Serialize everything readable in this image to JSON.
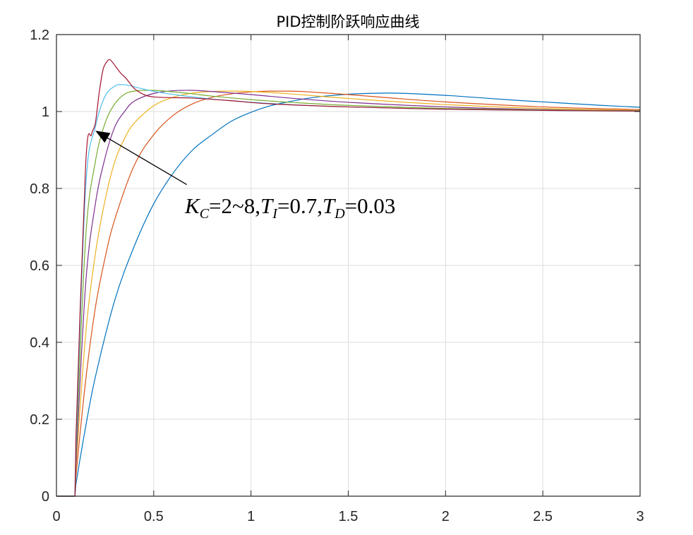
{
  "chart_data": {
    "type": "line",
    "title": "PID控制阶跃响应曲线",
    "xlabel": "",
    "ylabel": "",
    "xlim": [
      0,
      3
    ],
    "ylim": [
      0,
      1.2
    ],
    "grid": true,
    "x_ticks": [
      "0",
      "0.5",
      "1",
      "1.5",
      "2",
      "2.5",
      "3"
    ],
    "y_ticks": [
      "0",
      "0.2",
      "0.4",
      "0.6",
      "0.8",
      "1",
      "1.2"
    ],
    "annotation": {
      "K": "K",
      "C": "C",
      "kc_range": "=2~8,",
      "T1": "T",
      "I": "I",
      "ti_value": "=0.7,",
      "T2": "T",
      "D": "D",
      "td_value": "=0.03",
      "arrow_from": [
        0.67,
        0.81
      ],
      "arrow_to": [
        0.2,
        0.95
      ]
    },
    "series": [
      {
        "color": "#0072BD",
        "points": [
          [
            0,
            0
          ],
          [
            0.095,
            0
          ],
          [
            0.1,
            0.03
          ],
          [
            0.15,
            0.18
          ],
          [
            0.2,
            0.31
          ],
          [
            0.3,
            0.51
          ],
          [
            0.4,
            0.65
          ],
          [
            0.5,
            0.76
          ],
          [
            0.6,
            0.84
          ],
          [
            0.7,
            0.9
          ],
          [
            0.8,
            0.94
          ],
          [
            0.9,
            0.975
          ],
          [
            1,
            0.998
          ],
          [
            1.1,
            1.015
          ],
          [
            1.2,
            1.026
          ],
          [
            1.3,
            1.035
          ],
          [
            1.4,
            1.041
          ],
          [
            1.5,
            1.045
          ],
          [
            1.6,
            1.047
          ],
          [
            1.7,
            1.048
          ],
          [
            1.8,
            1.047
          ],
          [
            2,
            1.042
          ],
          [
            2.2,
            1.035
          ],
          [
            2.4,
            1.028
          ],
          [
            2.6,
            1.022
          ],
          [
            2.8,
            1.016
          ],
          [
            3,
            1.011
          ]
        ]
      },
      {
        "color": "#D95319",
        "points": [
          [
            0,
            0
          ],
          [
            0.095,
            0
          ],
          [
            0.1,
            0.05
          ],
          [
            0.15,
            0.3
          ],
          [
            0.2,
            0.49
          ],
          [
            0.25,
            0.62
          ],
          [
            0.3,
            0.72
          ],
          [
            0.4,
            0.86
          ],
          [
            0.5,
            0.94
          ],
          [
            0.6,
            0.99
          ],
          [
            0.7,
            1.02
          ],
          [
            0.8,
            1.037
          ],
          [
            0.9,
            1.046
          ],
          [
            1,
            1.051
          ],
          [
            1.1,
            1.053
          ],
          [
            1.2,
            1.053
          ],
          [
            1.3,
            1.051
          ],
          [
            1.5,
            1.044
          ],
          [
            1.7,
            1.036
          ],
          [
            2,
            1.025
          ],
          [
            2.5,
            1.012
          ],
          [
            3,
            1.005
          ]
        ]
      },
      {
        "color": "#EDB120",
        "points": [
          [
            0,
            0
          ],
          [
            0.095,
            0
          ],
          [
            0.1,
            0.07
          ],
          [
            0.15,
            0.42
          ],
          [
            0.2,
            0.63
          ],
          [
            0.25,
            0.77
          ],
          [
            0.3,
            0.87
          ],
          [
            0.35,
            0.93
          ],
          [
            0.4,
            0.97
          ],
          [
            0.5,
            1.015
          ],
          [
            0.6,
            1.037
          ],
          [
            0.7,
            1.048
          ],
          [
            0.8,
            1.052
          ],
          [
            0.9,
            1.053
          ],
          [
            1,
            1.052
          ],
          [
            1.2,
            1.046
          ],
          [
            1.5,
            1.034
          ],
          [
            2,
            1.018
          ],
          [
            2.5,
            1.008
          ],
          [
            3,
            1.003
          ]
        ]
      },
      {
        "color": "#7E2F8E",
        "points": [
          [
            0,
            0
          ],
          [
            0.095,
            0
          ],
          [
            0.1,
            0.08
          ],
          [
            0.15,
            0.55
          ],
          [
            0.2,
            0.76
          ],
          [
            0.25,
            0.88
          ],
          [
            0.3,
            0.96
          ],
          [
            0.35,
            1.0
          ],
          [
            0.4,
            1.027
          ],
          [
            0.5,
            1.047
          ],
          [
            0.6,
            1.054
          ],
          [
            0.7,
            1.055
          ],
          [
            0.8,
            1.052
          ],
          [
            1,
            1.044
          ],
          [
            1.2,
            1.035
          ],
          [
            1.5,
            1.024
          ],
          [
            2,
            1.012
          ],
          [
            2.5,
            1.005
          ],
          [
            3,
            1.002
          ]
        ]
      },
      {
        "color": "#77AC30",
        "points": [
          [
            0,
            0
          ],
          [
            0.095,
            0
          ],
          [
            0.1,
            0.1
          ],
          [
            0.15,
            0.67
          ],
          [
            0.2,
            0.87
          ],
          [
            0.25,
            0.97
          ],
          [
            0.3,
            1.02
          ],
          [
            0.35,
            1.045
          ],
          [
            0.4,
            1.053
          ],
          [
            0.5,
            1.055
          ],
          [
            0.6,
            1.051
          ],
          [
            0.7,
            1.046
          ],
          [
            0.8,
            1.04
          ],
          [
            1,
            1.031
          ],
          [
            1.2,
            1.024
          ],
          [
            1.5,
            1.016
          ],
          [
            2,
            1.008
          ],
          [
            2.5,
            1.004
          ],
          [
            3,
            1.002
          ]
        ]
      },
      {
        "color": "#4DBEEE",
        "points": [
          [
            0,
            0
          ],
          [
            0.095,
            0
          ],
          [
            0.1,
            0.12
          ],
          [
            0.15,
            0.8
          ],
          [
            0.2,
            0.96
          ],
          [
            0.25,
            1.04
          ],
          [
            0.3,
            1.066
          ],
          [
            0.33,
            1.07
          ],
          [
            0.37,
            1.068
          ],
          [
            0.45,
            1.058
          ],
          [
            0.55,
            1.048
          ],
          [
            0.7,
            1.038
          ],
          [
            0.9,
            1.028
          ],
          [
            1.2,
            1.018
          ],
          [
            1.5,
            1.012
          ],
          [
            2,
            1.006
          ],
          [
            2.5,
            1.003
          ],
          [
            3,
            1.001
          ]
        ]
      },
      {
        "color": "#A2142F",
        "points": [
          [
            0,
            0
          ],
          [
            0.095,
            0
          ],
          [
            0.1,
            0.15
          ],
          [
            0.15,
            0.86
          ],
          [
            0.18,
            0.94
          ],
          [
            0.2,
            0.97
          ],
          [
            0.22,
            1.05
          ],
          [
            0.24,
            1.11
          ],
          [
            0.26,
            1.13
          ],
          [
            0.27,
            1.135
          ],
          [
            0.28,
            1.133
          ],
          [
            0.3,
            1.12
          ],
          [
            0.33,
            1.1
          ],
          [
            0.36,
            1.085
          ],
          [
            0.4,
            1.06
          ],
          [
            0.45,
            1.044
          ],
          [
            0.5,
            1.038
          ],
          [
            0.6,
            1.036
          ],
          [
            0.7,
            1.035
          ],
          [
            0.9,
            1.028
          ],
          [
            1.1,
            1.02
          ],
          [
            1.5,
            1.012
          ],
          [
            2,
            1.006
          ],
          [
            2.5,
            1.003
          ],
          [
            3,
            1.001
          ]
        ]
      }
    ]
  }
}
